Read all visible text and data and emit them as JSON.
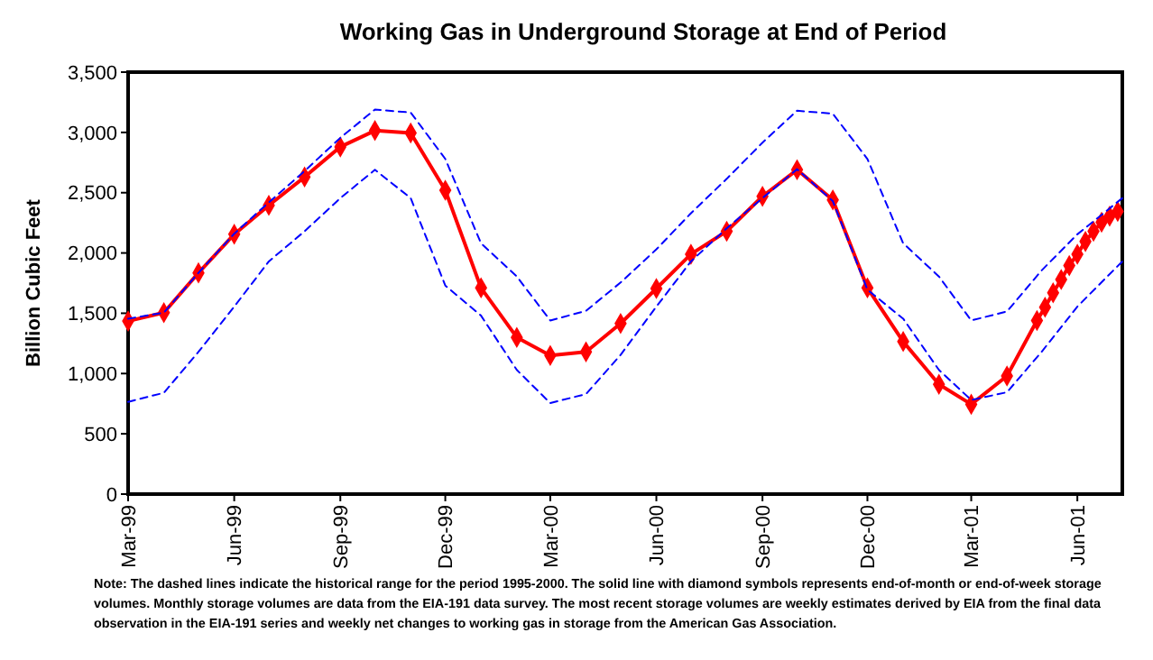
{
  "chart_data": {
    "type": "line",
    "title": "Working Gas in Underground Storage at End of Period",
    "ylabel": "Billion Cubic Feet",
    "xlim": [
      "1999-03",
      "2001-07-10"
    ],
    "xticks": [
      {
        "value": "1999-03",
        "label": "Mar-99"
      },
      {
        "value": "1999-06",
        "label": "Jun-99"
      },
      {
        "value": "1999-09",
        "label": "Sep-99"
      },
      {
        "value": "1999-12",
        "label": "Dec-99"
      },
      {
        "value": "2000-03",
        "label": "Mar-00"
      },
      {
        "value": "2000-06",
        "label": "Jun-00"
      },
      {
        "value": "2000-09",
        "label": "Sep-00"
      },
      {
        "value": "2000-12",
        "label": "Dec-00"
      },
      {
        "value": "2001-03",
        "label": "Mar-01"
      },
      {
        "value": "2001-06",
        "label": "Jun-01"
      }
    ],
    "ylim": [
      0,
      3500
    ],
    "yticks": [
      0,
      500,
      {
        "value": 1000,
        "label": "1,000"
      },
      {
        "value": 1500,
        "label": "1,500"
      },
      {
        "value": 2000,
        "label": "2,000"
      },
      {
        "value": 2500,
        "label": "2,500"
      },
      {
        "value": 3000,
        "label": "3,000"
      },
      {
        "value": 3500,
        "label": "3,500"
      }
    ],
    "grid": false,
    "series": [
      {
        "color": "#0000ff",
        "line_style": "dashed",
        "marker": "none",
        "x": [
          "1999-03",
          "1999-04",
          "1999-05",
          "1999-06",
          "1999-07",
          "1999-08",
          "1999-09",
          "1999-10",
          "1999-11",
          "1999-12",
          "2000-01",
          "2000-02",
          "2000-03",
          "2000-04",
          "2000-05",
          "2000-06",
          "2000-07",
          "2000-08",
          "2000-09",
          "2000-10",
          "2000-11",
          "2000-12",
          "2001-01",
          "2001-02",
          "2001-03",
          "2001-04",
          "2001-05",
          "2001-06",
          "2001-07-10"
        ],
        "values": [
          1455,
          1505,
          1835,
          2160,
          2420,
          2680,
          2955,
          3190,
          3165,
          2780,
          2080,
          1805,
          1440,
          1520,
          1755,
          2030,
          2330,
          2615,
          2915,
          3180,
          3155,
          2780,
          2080,
          1805,
          1440,
          1515,
          1855,
          2155,
          2455
        ]
      },
      {
        "color": "#0000ff",
        "line_style": "dashed",
        "marker": "none",
        "x": [
          "1999-03",
          "1999-04",
          "1999-05",
          "1999-06",
          "1999-07",
          "1999-08",
          "1999-09",
          "1999-10",
          "1999-11",
          "1999-12",
          "2000-01",
          "2000-02",
          "2000-03",
          "2000-04",
          "2000-05",
          "2000-06",
          "2000-07",
          "2000-08",
          "2000-09",
          "2000-10",
          "2000-11",
          "2000-12",
          "2001-01",
          "2001-02",
          "2001-03",
          "2001-04",
          "2001-05",
          "2001-06",
          "2001-07-10"
        ],
        "values": [
          765,
          840,
          1180,
          1555,
          1930,
          2180,
          2455,
          2690,
          2455,
          1730,
          1480,
          1030,
          755,
          830,
          1155,
          1555,
          1930,
          2205,
          2455,
          2695,
          2430,
          1695,
          1455,
          1030,
          780,
          845,
          1180,
          1555,
          1930
        ]
      },
      {
        "color": "#ff0000",
        "line_style": "solid",
        "marker": "diamond",
        "x": [
          "1999-03",
          "1999-04",
          "1999-05",
          "1999-06",
          "1999-07",
          "1999-08",
          "1999-09",
          "1999-10",
          "1999-11",
          "1999-12",
          "2000-01",
          "2000-02",
          "2000-03",
          "2000-04",
          "2000-05",
          "2000-06",
          "2000-07",
          "2000-08",
          "2000-09",
          "2000-10",
          "2000-11",
          "2000-12",
          "2001-01",
          "2001-02",
          "2001-03",
          "2001-04",
          "2001-04-27",
          "2001-05-04",
          "2001-05-11",
          "2001-05-18",
          "2001-05-25",
          "2001-06-01",
          "2001-06-08",
          "2001-06-15",
          "2001-06-22",
          "2001-06-29",
          "2001-07-06"
        ],
        "values": [
          1435,
          1505,
          1835,
          2155,
          2395,
          2630,
          2880,
          3015,
          2995,
          2520,
          1710,
          1300,
          1150,
          1180,
          1415,
          1705,
          1990,
          2180,
          2470,
          2690,
          2440,
          1710,
          1265,
          910,
          745,
          980,
          1440,
          1550,
          1670,
          1780,
          1895,
          1990,
          2095,
          2180,
          2255,
          2305,
          2345
        ]
      }
    ],
    "annotations": [
      "Note: The dashed lines indicate the historical range for the period 1995-2000.  The solid line with diamond symbols represents end-of-month or end-of-week storage volumes.  Monthly storage volumes are data from the EIA-191 data survey.  The most recent storage volumes are weekly estimates derived by EIA from the final data observation in the EIA-191 series and weekly net changes to working gas in storage from the American Gas Association."
    ]
  }
}
